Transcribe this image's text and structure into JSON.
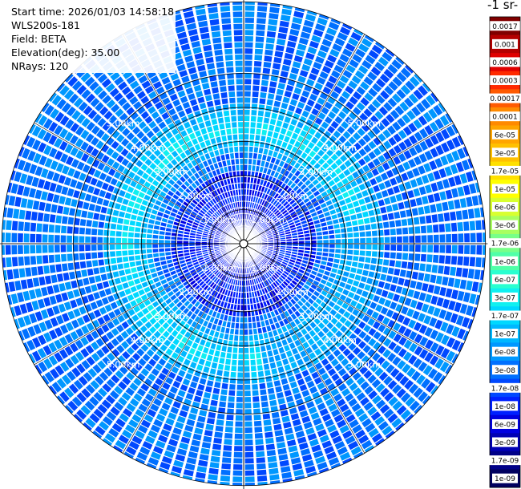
{
  "info": {
    "start_time": "Start time: 2026/01/03 14:58:18",
    "instrument": "WLS200s-181",
    "field": "Field: BETA",
    "elevation": "Elevation(deg): 35.00",
    "nrays": "NRays: 120"
  },
  "colorbar": {
    "title": "-1 sr-",
    "labels": [
      "0.0017",
      "0.001",
      "0.0006",
      "0.0003",
      "0.00017",
      "0.0001",
      "6e-05",
      "3e-05",
      "1.7e-05",
      "1e-05",
      "6e-06",
      "3e-06",
      "1.7e-06",
      "1e-06",
      "6e-07",
      "3e-07",
      "1.7e-07",
      "1e-07",
      "6e-08",
      "3e-08",
      "1.7e-08",
      "1e-08",
      "6e-09",
      "3e-09",
      "1.7e-09",
      "1e-09"
    ],
    "colors": [
      "#800000",
      "#b40000",
      "#e00000",
      "#ff2a00",
      "#ff5a00",
      "#ff8a00",
      "#ffa500",
      "#ffc000",
      "#ffe000",
      "#ffff00",
      "#d8ff30",
      "#a8ff60",
      "#78ff88",
      "#50ffa8",
      "#2affd0",
      "#10f0f0",
      "#00d8ff",
      "#00b8ff",
      "#0098ff",
      "#0070ff",
      "#0048ff",
      "#0020ff",
      "#0000e0",
      "#0000b4",
      "#000088",
      "#000060"
    ]
  },
  "chart_data": {
    "type": "heatmap",
    "projection": "polar-ppi",
    "field": "BETA",
    "elevation_deg": 35.0,
    "n_rays": 120,
    "range_rings_km": [
      1,
      2,
      3,
      4,
      5
    ],
    "range_ring_labels": [
      "1.00km",
      "2.00km",
      "3.00km",
      "4.00km",
      "5.00km"
    ],
    "ring_label_azimuths_deg": [
      45,
      135,
      225,
      315
    ],
    "max_range_km": 7.1,
    "background_beta": "3e-08",
    "aerosol_ring": {
      "range_km": [
        2.6,
        4.2
      ],
      "peak_beta": "1.7e-07",
      "azimuth_span_deg": [
        170,
        80
      ]
    },
    "near_field_beta": "1e-08"
  }
}
